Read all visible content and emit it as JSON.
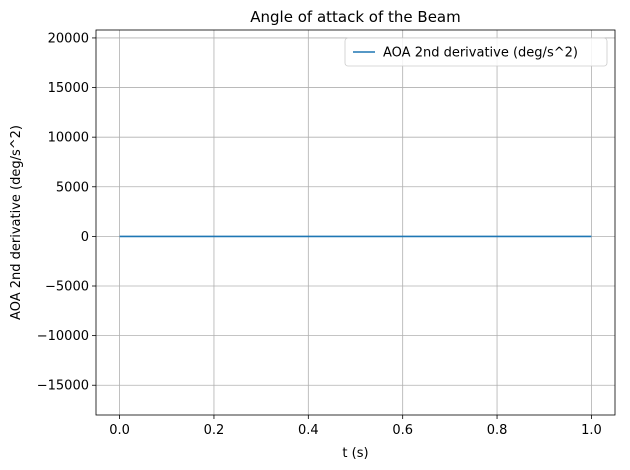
{
  "chart_data": {
    "type": "line",
    "title": "Angle of attack of the Beam",
    "xlabel": "t (s)",
    "ylabel": "AOA 2nd derivative (deg/s^2)",
    "xlim": [
      -0.05,
      1.05
    ],
    "ylim": [
      -18000,
      20800
    ],
    "xticks": [
      0.0,
      0.2,
      0.4,
      0.6,
      0.8,
      1.0
    ],
    "xtick_labels": [
      "0.0",
      "0.2",
      "0.4",
      "0.6",
      "0.8",
      "1.0"
    ],
    "yticks": [
      -15000,
      -10000,
      -5000,
      0,
      5000,
      10000,
      15000,
      20000
    ],
    "ytick_labels": [
      "−15000",
      "−10000",
      "−5000",
      "0",
      "5000",
      "10000",
      "15000",
      "20000"
    ],
    "grid": true,
    "legend_position": "top-right",
    "series": [
      {
        "name": "AOA 2nd derivative (deg/s^2)",
        "color": "#1f77b4",
        "x": [
          0.0,
          0.1,
          0.2,
          0.3,
          0.4,
          0.5,
          0.6,
          0.7,
          0.8,
          0.9,
          1.0
        ],
        "y": [
          0,
          0,
          0,
          0,
          0,
          0,
          0,
          0,
          0,
          0,
          0
        ]
      }
    ]
  }
}
